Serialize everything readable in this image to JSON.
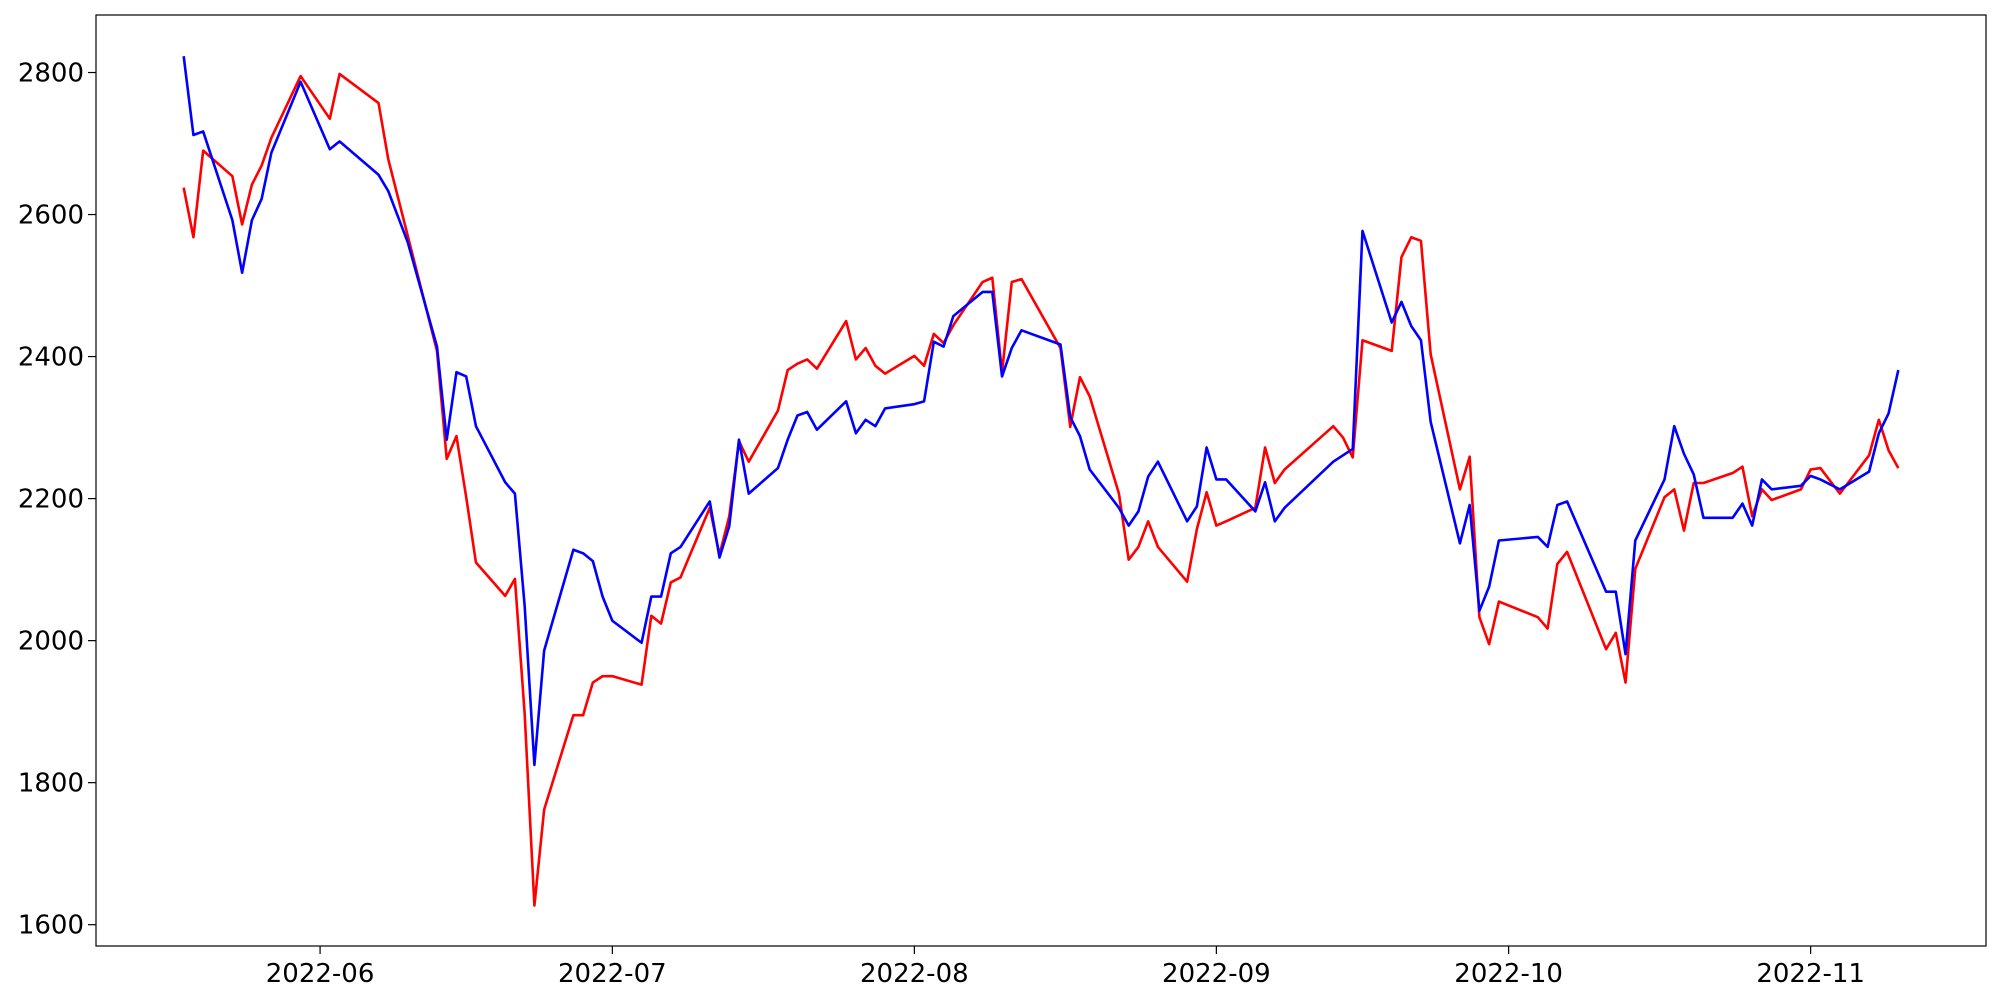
{
  "chart_data": {
    "type": "line",
    "x": [
      "2022-05-18",
      "2022-05-19",
      "2022-05-20",
      "2022-05-23",
      "2022-05-24",
      "2022-05-25",
      "2022-05-26",
      "2022-05-27",
      "2022-05-30",
      "2022-06-02",
      "2022-06-03",
      "2022-06-07",
      "2022-06-08",
      "2022-06-09",
      "2022-06-10",
      "2022-06-13",
      "2022-06-14",
      "2022-06-15",
      "2022-06-16",
      "2022-06-17",
      "2022-06-20",
      "2022-06-21",
      "2022-06-22",
      "2022-06-23",
      "2022-06-24",
      "2022-06-27",
      "2022-06-28",
      "2022-06-29",
      "2022-06-30",
      "2022-07-01",
      "2022-07-04",
      "2022-07-05",
      "2022-07-06",
      "2022-07-07",
      "2022-07-08",
      "2022-07-11",
      "2022-07-12",
      "2022-07-13",
      "2022-07-14",
      "2022-07-15",
      "2022-07-18",
      "2022-07-19",
      "2022-07-20",
      "2022-07-21",
      "2022-07-22",
      "2022-07-25",
      "2022-07-26",
      "2022-07-27",
      "2022-07-28",
      "2022-07-29",
      "2022-08-01",
      "2022-08-02",
      "2022-08-03",
      "2022-08-04",
      "2022-08-05",
      "2022-08-08",
      "2022-08-09",
      "2022-08-10",
      "2022-08-11",
      "2022-08-12",
      "2022-08-16",
      "2022-08-17",
      "2022-08-18",
      "2022-08-19",
      "2022-08-22",
      "2022-08-23",
      "2022-08-24",
      "2022-08-25",
      "2022-08-26",
      "2022-08-29",
      "2022-08-30",
      "2022-08-31",
      "2022-09-01",
      "2022-09-02",
      "2022-09-05",
      "2022-09-06",
      "2022-09-07",
      "2022-09-08",
      "2022-09-13",
      "2022-09-14",
      "2022-09-15",
      "2022-09-16",
      "2022-09-19",
      "2022-09-20",
      "2022-09-21",
      "2022-09-22",
      "2022-09-23",
      "2022-09-26",
      "2022-09-27",
      "2022-09-28",
      "2022-09-29",
      "2022-09-30",
      "2022-10-04",
      "2022-10-05",
      "2022-10-06",
      "2022-10-07",
      "2022-10-11",
      "2022-10-12",
      "2022-10-13",
      "2022-10-14",
      "2022-10-17",
      "2022-10-18",
      "2022-10-19",
      "2022-10-20",
      "2022-10-21",
      "2022-10-24",
      "2022-10-25",
      "2022-10-26",
      "2022-10-27",
      "2022-10-28",
      "2022-10-31",
      "2022-11-01",
      "2022-11-02",
      "2022-11-04",
      "2022-11-07",
      "2022-11-08",
      "2022-11-09",
      "2022-11-10"
    ],
    "series": [
      {
        "color": "#ff0000",
        "values": [
          2638,
          2568,
          2690,
          2654,
          2586,
          2642,
          2669,
          2708,
          2795,
          2735,
          2798,
          2757,
          2678,
          2624,
          2570,
          2408,
          2256,
          2288,
          2202,
          2110,
          2063,
          2087,
          1897,
          1627,
          1762,
          1895,
          1895,
          1941,
          1950,
          1950,
          1938,
          2035,
          2024,
          2082,
          2089,
          2187,
          2121,
          2175,
          2281,
          2252,
          2324,
          2381,
          2390,
          2396,
          2383,
          2450,
          2396,
          2412,
          2387,
          2376,
          2401,
          2387,
          2432,
          2419,
          2444,
          2505,
          2511,
          2378,
          2505,
          2509,
          2412,
          2301,
          2371,
          2344,
          2207,
          2114,
          2132,
          2168,
          2132,
          2083,
          2157,
          2209,
          2162,
          2168,
          2187,
          2272,
          2222,
          2241,
          2302,
          2286,
          2258,
          2423,
          2408,
          2540,
          2568,
          2563,
          2403,
          2213,
          2259,
          2033,
          1995,
          2055,
          2033,
          2017,
          2108,
          2125,
          1988,
          2011,
          1941,
          2101,
          2202,
          2213,
          2155,
          2222,
          2222,
          2236,
          2245,
          2175,
          2213,
          2198,
          2213,
          2241,
          2243,
          2207,
          2261,
          2311,
          2268,
          2243
        ]
      },
      {
        "color": "#0000ff",
        "values": [
          2823,
          2712,
          2717,
          2592,
          2518,
          2592,
          2622,
          2687,
          2787,
          2692,
          2703,
          2656,
          2633,
          2597,
          2561,
          2414,
          2283,
          2378,
          2372,
          2302,
          2223,
          2207,
          2049,
          1825,
          1986,
          2128,
          2123,
          2112,
          2062,
          2028,
          1997,
          2062,
          2062,
          2123,
          2132,
          2196,
          2117,
          2161,
          2283,
          2207,
          2243,
          2283,
          2317,
          2322,
          2297,
          2337,
          2292,
          2311,
          2302,
          2327,
          2333,
          2337,
          2421,
          2414,
          2457,
          2491,
          2491,
          2372,
          2412,
          2437,
          2417,
          2315,
          2288,
          2241,
          2187,
          2162,
          2182,
          2231,
          2252,
          2168,
          2189,
          2272,
          2227,
          2227,
          2182,
          2223,
          2168,
          2187,
          2252,
          2261,
          2270,
          2577,
          2448,
          2477,
          2443,
          2423,
          2308,
          2137,
          2191,
          2042,
          2076,
          2141,
          2146,
          2132,
          2191,
          2196,
          2069,
          2069,
          1981,
          2141,
          2227,
          2302,
          2263,
          2234,
          2173,
          2173,
          2193,
          2162,
          2227,
          2213,
          2218,
          2232,
          2227,
          2213,
          2238,
          2292,
          2320,
          2381
        ]
      }
    ],
    "xlim": [
      "2022-05-09",
      "2022-11-19"
    ],
    "xticks": [
      {
        "value": "2022-06-01",
        "label": "2022-06"
      },
      {
        "value": "2022-07-01",
        "label": "2022-07"
      },
      {
        "value": "2022-08-01",
        "label": "2022-08"
      },
      {
        "value": "2022-09-01",
        "label": "2022-09"
      },
      {
        "value": "2022-10-01",
        "label": "2022-10"
      },
      {
        "value": "2022-11-01",
        "label": "2022-11"
      }
    ],
    "ylim": [
      1570,
      2881
    ],
    "yticks": [
      1600,
      1800,
      2000,
      2200,
      2400,
      2600,
      2800
    ],
    "grid": false
  }
}
